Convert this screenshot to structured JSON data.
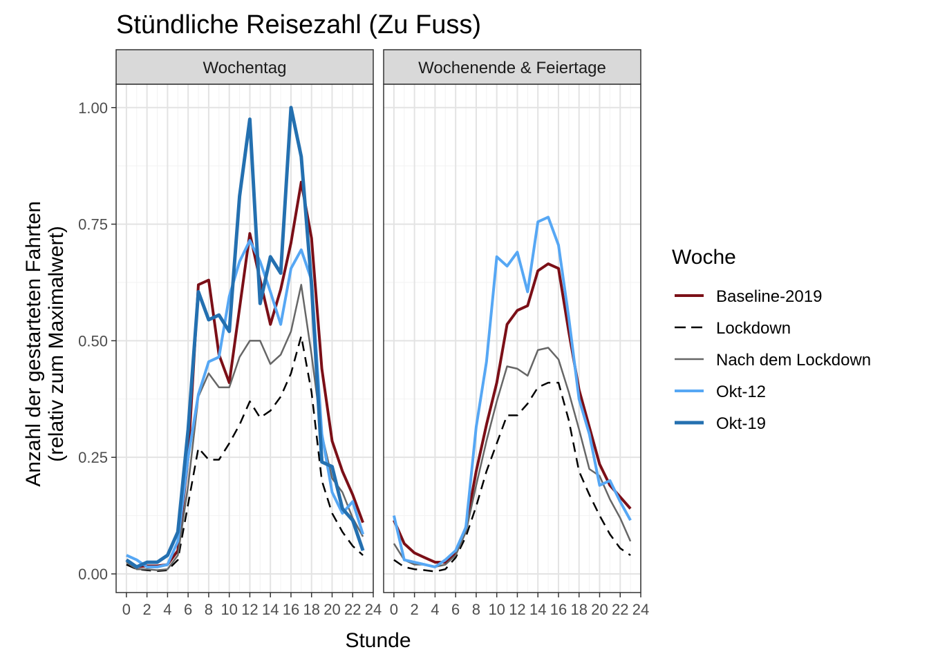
{
  "chart_data": {
    "type": "line",
    "title": "Stündliche Reisezahl (Zu Fuss)",
    "xlabel": "Stunde",
    "ylabel_line1": "Anzahl der gestarteten Fahrten",
    "ylabel_line2": "(relativ zum Maximalwert)",
    "xlim": [
      -1,
      24
    ],
    "ylim": [
      -0.04,
      1.05
    ],
    "x_ticks": [
      "0",
      "2",
      "4",
      "6",
      "8",
      "10",
      "12",
      "14",
      "16",
      "18",
      "20",
      "22",
      "24"
    ],
    "y_ticks": [
      "0.00",
      "0.25",
      "0.50",
      "0.75",
      "1.00"
    ],
    "grid": true,
    "legend": {
      "title": "Woche",
      "position": "right",
      "entries": [
        "Baseline-2019",
        "Lockdown",
        "Nach dem Lockdown",
        "Okt-12",
        "Okt-19"
      ]
    },
    "series_style": {
      "Baseline-2019": {
        "color": "#7b0f17",
        "dash": "",
        "width": 4
      },
      "Lockdown": {
        "color": "#000000",
        "dash": "14 9",
        "width": 2.5
      },
      "Nach dem Lockdown": {
        "color": "#666666",
        "dash": "",
        "width": 2.5
      },
      "Okt-12": {
        "color": "#56a7f4",
        "dash": "",
        "width": 4
      },
      "Okt-19": {
        "color": "#2470b0",
        "dash": "",
        "width": 5
      }
    },
    "panels": [
      {
        "label": "Wochentag",
        "series": [
          {
            "name": "Baseline-2019",
            "x": [
              0,
              1,
              2,
              3,
              4,
              5,
              6,
              7,
              8,
              9,
              10,
              11,
              12,
              13,
              14,
              15,
              16,
              17,
              18,
              19,
              20,
              21,
              22,
              23
            ],
            "values": [
              0.03,
              0.015,
              0.017,
              0.017,
              0.02,
              0.05,
              0.25,
              0.62,
              0.63,
              0.47,
              0.41,
              0.57,
              0.73,
              0.63,
              0.535,
              0.61,
              0.71,
              0.84,
              0.72,
              0.44,
              0.285,
              0.22,
              0.17,
              0.11
            ]
          },
          {
            "name": "Lockdown",
            "x": [
              0,
              1,
              2,
              3,
              4,
              5,
              6,
              7,
              8,
              9,
              10,
              11,
              12,
              13,
              14,
              15,
              16,
              17,
              18,
              19,
              20,
              21,
              22,
              23
            ],
            "values": [
              0.02,
              0.01,
              0.008,
              0.006,
              0.008,
              0.03,
              0.15,
              0.27,
              0.245,
              0.245,
              0.28,
              0.32,
              0.37,
              0.335,
              0.35,
              0.38,
              0.43,
              0.51,
              0.39,
              0.2,
              0.13,
              0.09,
              0.06,
              0.04
            ]
          },
          {
            "name": "Nach dem Lockdown",
            "x": [
              0,
              1,
              2,
              3,
              4,
              5,
              6,
              7,
              8,
              9,
              10,
              11,
              12,
              13,
              14,
              15,
              16,
              17,
              18,
              19,
              20,
              21,
              22,
              23
            ],
            "values": [
              0.025,
              0.01,
              0.01,
              0.008,
              0.01,
              0.04,
              0.19,
              0.38,
              0.43,
              0.4,
              0.4,
              0.465,
              0.5,
              0.5,
              0.45,
              0.47,
              0.52,
              0.62,
              0.47,
              0.3,
              0.205,
              0.175,
              0.12,
              0.08
            ]
          },
          {
            "name": "Okt-12",
            "x": [
              0,
              1,
              2,
              3,
              4,
              5,
              6,
              7,
              8,
              9,
              10,
              11,
              12,
              13,
              14,
              15,
              16,
              17,
              18,
              19,
              20,
              21,
              22,
              23
            ],
            "values": [
              0.04,
              0.03,
              0.015,
              0.015,
              0.02,
              0.07,
              0.25,
              0.385,
              0.455,
              0.465,
              0.595,
              0.67,
              0.715,
              0.67,
              0.605,
              0.535,
              0.655,
              0.695,
              0.63,
              0.3,
              0.175,
              0.13,
              0.155,
              0.085
            ]
          },
          {
            "name": "Okt-19",
            "x": [
              0,
              1,
              2,
              3,
              4,
              5,
              6,
              7,
              8,
              9,
              10,
              11,
              12,
              13,
              14,
              15,
              16,
              17,
              18,
              19,
              20,
              21,
              22,
              23
            ],
            "values": [
              0.03,
              0.015,
              0.025,
              0.025,
              0.04,
              0.09,
              0.31,
              0.605,
              0.545,
              0.555,
              0.52,
              0.81,
              0.975,
              0.58,
              0.68,
              0.645,
              1.0,
              0.895,
              0.62,
              0.24,
              0.23,
              0.14,
              0.115,
              0.05
            ]
          }
        ]
      },
      {
        "label": "Wochenende & Feiertage",
        "series": [
          {
            "name": "Baseline-2019",
            "x": [
              0,
              1,
              2,
              3,
              4,
              5,
              6,
              7,
              8,
              9,
              10,
              11,
              12,
              13,
              14,
              15,
              16,
              17,
              18,
              19,
              20,
              21,
              22,
              23
            ],
            "values": [
              0.115,
              0.065,
              0.045,
              0.035,
              0.025,
              0.025,
              0.045,
              0.1,
              0.22,
              0.32,
              0.41,
              0.535,
              0.565,
              0.575,
              0.65,
              0.665,
              0.655,
              0.52,
              0.395,
              0.315,
              0.235,
              0.19,
              0.165,
              0.14
            ]
          },
          {
            "name": "Lockdown",
            "x": [
              0,
              1,
              2,
              3,
              4,
              5,
              6,
              7,
              8,
              9,
              10,
              11,
              12,
              13,
              14,
              15,
              16,
              17,
              18,
              19,
              20,
              21,
              22,
              23
            ],
            "values": [
              0.03,
              0.015,
              0.01,
              0.008,
              0.005,
              0.01,
              0.035,
              0.08,
              0.145,
              0.22,
              0.28,
              0.34,
              0.34,
              0.365,
              0.4,
              0.41,
              0.41,
              0.33,
              0.22,
              0.17,
              0.125,
              0.085,
              0.055,
              0.04
            ]
          },
          {
            "name": "Nach dem Lockdown",
            "x": [
              0,
              1,
              2,
              3,
              4,
              5,
              6,
              7,
              8,
              9,
              10,
              11,
              12,
              13,
              14,
              15,
              16,
              17,
              18,
              19,
              20,
              21,
              22,
              23
            ],
            "values": [
              0.065,
              0.03,
              0.02,
              0.02,
              0.015,
              0.02,
              0.04,
              0.09,
              0.19,
              0.285,
              0.37,
              0.445,
              0.44,
              0.425,
              0.48,
              0.485,
              0.46,
              0.39,
              0.31,
              0.225,
              0.21,
              0.16,
              0.12,
              0.07
            ]
          },
          {
            "name": "Okt-12",
            "x": [
              0,
              1,
              2,
              3,
              4,
              5,
              6,
              7,
              8,
              9,
              10,
              11,
              12,
              13,
              14,
              15,
              16,
              17,
              18,
              19,
              20,
              21,
              22,
              23
            ],
            "values": [
              0.125,
              0.03,
              0.025,
              0.02,
              0.015,
              0.03,
              0.05,
              0.1,
              0.315,
              0.455,
              0.68,
              0.66,
              0.69,
              0.605,
              0.755,
              0.765,
              0.705,
              0.55,
              0.375,
              0.3,
              0.19,
              0.2,
              0.155,
              0.115
            ]
          }
        ]
      }
    ]
  }
}
